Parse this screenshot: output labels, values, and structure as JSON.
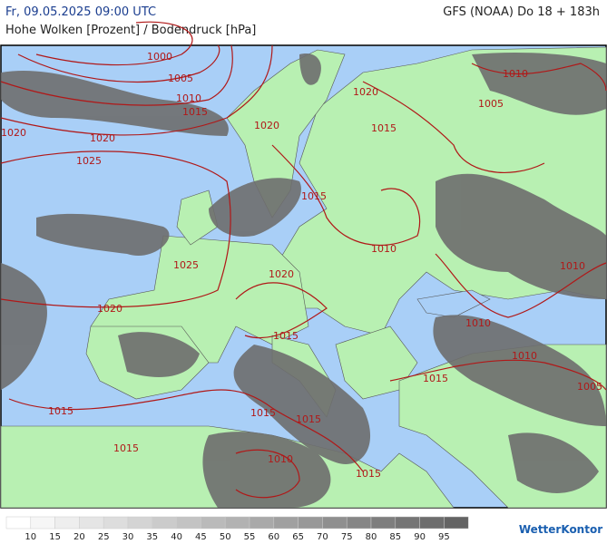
{
  "header": {
    "title": "Fr, 09.05.2025 09:00 UTC",
    "subtitle": "Hohe Wolken [Prozent] / Bodendruck [hPa]",
    "model": "GFS (NOAA) Do 18 + 183h"
  },
  "map": {
    "isobar_labels": [
      "1000",
      "1005",
      "1010",
      "1015",
      "1020",
      "1020",
      "1025",
      "1020",
      "1020",
      "1015",
      "1010",
      "1005",
      "1015",
      "1010",
      "1025",
      "1020",
      "1020",
      "1010",
      "1010",
      "1015",
      "1010",
      "1015",
      "1005",
      "1015",
      "1015",
      "1015",
      "1015",
      "1010",
      "1015"
    ]
  },
  "legend": {
    "labels": [
      "10",
      "15",
      "20",
      "25",
      "30",
      "35",
      "40",
      "45",
      "50",
      "55",
      "60",
      "65",
      "70",
      "75",
      "80",
      "85",
      "90",
      "95"
    ]
  },
  "logo": {
    "text": "WetterKontor"
  }
}
